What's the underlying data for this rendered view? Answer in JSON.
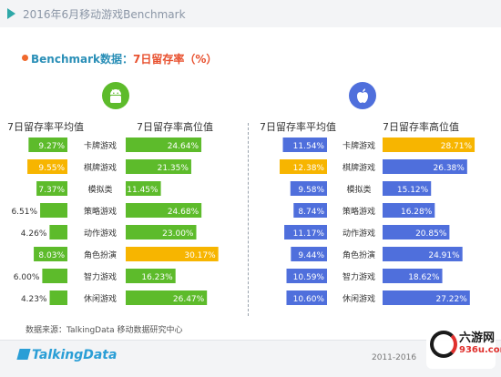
{
  "header": {
    "title": "2016年6月移动游戏Benchmark"
  },
  "subtitle": {
    "prefix": "Benchmark数据：",
    "highlight": "7日留存率（%）"
  },
  "colors": {
    "green": "#5dbb2b",
    "yellow": "#f7b500",
    "blue": "#4f6fdc",
    "accent": "#2ea8a8"
  },
  "icons": {
    "android": "android-icon",
    "apple": "apple-icon"
  },
  "chart_data": [
    {
      "type": "bar",
      "platform": "android",
      "categories": [
        "卡牌游戏",
        "棋牌游戏",
        "模拟类",
        "策略游戏",
        "动作游戏",
        "角色扮演",
        "智力游戏",
        "休闲游戏"
      ],
      "series": [
        {
          "name": "7日留存率平均值",
          "values": [
            9.27,
            9.55,
            7.37,
            6.51,
            4.26,
            8.03,
            6.0,
            4.23
          ],
          "labels": [
            "9.27%",
            "9.55%",
            "7.37%",
            "6.51%",
            "4.26%",
            "8.03%",
            "6.00%",
            "4.23%"
          ]
        },
        {
          "name": "7日留存率高位值",
          "values": [
            24.64,
            21.35,
            11.45,
            24.68,
            23.0,
            30.17,
            16.23,
            26.47
          ],
          "labels": [
            "24.64%",
            "21.35%",
            "11.45%",
            "24.68%",
            "23.00%",
            "30.17%",
            "16.23%",
            "26.47%"
          ]
        }
      ],
      "highlight": {
        "max_avg_index": 1,
        "max_high_index": 5
      }
    },
    {
      "type": "bar",
      "platform": "ios",
      "categories": [
        "卡牌游戏",
        "棋牌游戏",
        "模拟类",
        "策略游戏",
        "动作游戏",
        "角色扮演",
        "智力游戏",
        "休闲游戏"
      ],
      "series": [
        {
          "name": "7日留存率平均值",
          "values": [
            11.54,
            12.38,
            9.58,
            8.74,
            11.17,
            9.44,
            10.59,
            10.6
          ],
          "labels": [
            "11.54%",
            "12.38%",
            "9.58%",
            "8.74%",
            "11.17%",
            "9.44%",
            "10.59%",
            "10.60%"
          ]
        },
        {
          "name": "7日留存率高位值",
          "values": [
            28.71,
            26.38,
            15.12,
            16.28,
            20.85,
            24.91,
            18.62,
            27.22
          ],
          "labels": [
            "28.71%",
            "26.38%",
            "15.12%",
            "16.28%",
            "20.85%",
            "24.91%",
            "18.62%",
            "27.22%"
          ]
        }
      ],
      "highlight": {
        "max_avg_index": 1,
        "max_high_index": 0
      }
    }
  ],
  "source": "数据来源：TalkingData 移动数据研究中心",
  "footer": {
    "logo": "TalkingData",
    "years": "2011-2016"
  },
  "watermark": {
    "name": "六游网",
    "url": "936u.com"
  }
}
